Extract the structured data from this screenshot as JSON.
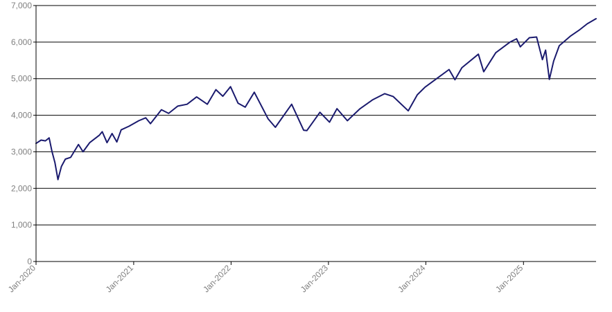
{
  "chart_data": {
    "type": "line",
    "title": "",
    "xlabel": "",
    "ylabel": "",
    "ylim": [
      0,
      7000
    ],
    "xlim": [
      "2020-01-01",
      "2025-09-30"
    ],
    "grid": "horizontal",
    "legend": "none",
    "y_ticks": [
      "0",
      "1,000",
      "2,000",
      "3,000",
      "4,000",
      "5,000",
      "6,000",
      "7,000"
    ],
    "y_tick_values": [
      0,
      1000,
      2000,
      3000,
      4000,
      5000,
      6000,
      7000
    ],
    "x_ticks": [
      "Jan-2020",
      "Jan-2021",
      "Jan-2022",
      "Jan-2023",
      "Jan-2024",
      "Jan-2025"
    ],
    "x_tick_values": [
      "2020-01-01",
      "2021-01-01",
      "2022-01-01",
      "2023-01-01",
      "2024-01-01",
      "2025-01-01"
    ],
    "series": [
      {
        "color": "#1a1a6e",
        "points": [
          [
            "2020-01-01",
            3230
          ],
          [
            "2020-01-20",
            3320
          ],
          [
            "2020-02-05",
            3300
          ],
          [
            "2020-02-19",
            3380
          ],
          [
            "2020-03-01",
            3000
          ],
          [
            "2020-03-12",
            2700
          ],
          [
            "2020-03-23",
            2240
          ],
          [
            "2020-04-05",
            2600
          ],
          [
            "2020-04-20",
            2800
          ],
          [
            "2020-05-10",
            2850
          ],
          [
            "2020-06-08",
            3200
          ],
          [
            "2020-06-25",
            3000
          ],
          [
            "2020-07-20",
            3250
          ],
          [
            "2020-08-25",
            3450
          ],
          [
            "2020-09-05",
            3550
          ],
          [
            "2020-09-23",
            3250
          ],
          [
            "2020-10-12",
            3500
          ],
          [
            "2020-10-30",
            3270
          ],
          [
            "2020-11-15",
            3600
          ],
          [
            "2020-12-15",
            3700
          ],
          [
            "2021-01-20",
            3850
          ],
          [
            "2021-02-15",
            3930
          ],
          [
            "2021-03-05",
            3770
          ],
          [
            "2021-04-15",
            4150
          ],
          [
            "2021-05-12",
            4050
          ],
          [
            "2021-06-15",
            4250
          ],
          [
            "2021-07-20",
            4300
          ],
          [
            "2021-08-25",
            4500
          ],
          [
            "2021-10-04",
            4300
          ],
          [
            "2021-11-05",
            4700
          ],
          [
            "2021-12-01",
            4520
          ],
          [
            "2021-12-30",
            4780
          ],
          [
            "2022-01-27",
            4330
          ],
          [
            "2022-02-23",
            4220
          ],
          [
            "2022-03-29",
            4630
          ],
          [
            "2022-05-20",
            3900
          ],
          [
            "2022-06-16",
            3670
          ],
          [
            "2022-08-16",
            4300
          ],
          [
            "2022-09-30",
            3590
          ],
          [
            "2022-10-12",
            3580
          ],
          [
            "2022-11-30",
            4080
          ],
          [
            "2023-01-05",
            3810
          ],
          [
            "2023-02-02",
            4180
          ],
          [
            "2023-03-13",
            3850
          ],
          [
            "2023-04-28",
            4170
          ],
          [
            "2023-06-15",
            4420
          ],
          [
            "2023-07-31",
            4590
          ],
          [
            "2023-09-01",
            4510
          ],
          [
            "2023-10-27",
            4120
          ],
          [
            "2023-11-30",
            4560
          ],
          [
            "2023-12-29",
            4770
          ],
          [
            "2024-03-28",
            5250
          ],
          [
            "2024-04-19",
            4970
          ],
          [
            "2024-05-15",
            5300
          ],
          [
            "2024-07-16",
            5670
          ],
          [
            "2024-08-05",
            5190
          ],
          [
            "2024-09-19",
            5710
          ],
          [
            "2024-11-11",
            6000
          ],
          [
            "2024-12-06",
            6090
          ],
          [
            "2024-12-20",
            5870
          ],
          [
            "2025-01-23",
            6120
          ],
          [
            "2025-02-19",
            6140
          ],
          [
            "2025-03-13",
            5520
          ],
          [
            "2025-03-25",
            5780
          ],
          [
            "2025-04-08",
            4980
          ],
          [
            "2025-04-24",
            5480
          ],
          [
            "2025-05-15",
            5900
          ],
          [
            "2025-06-27",
            6170
          ],
          [
            "2025-07-31",
            6340
          ],
          [
            "2025-08-28",
            6500
          ],
          [
            "2025-09-30",
            6640
          ]
        ]
      }
    ]
  }
}
